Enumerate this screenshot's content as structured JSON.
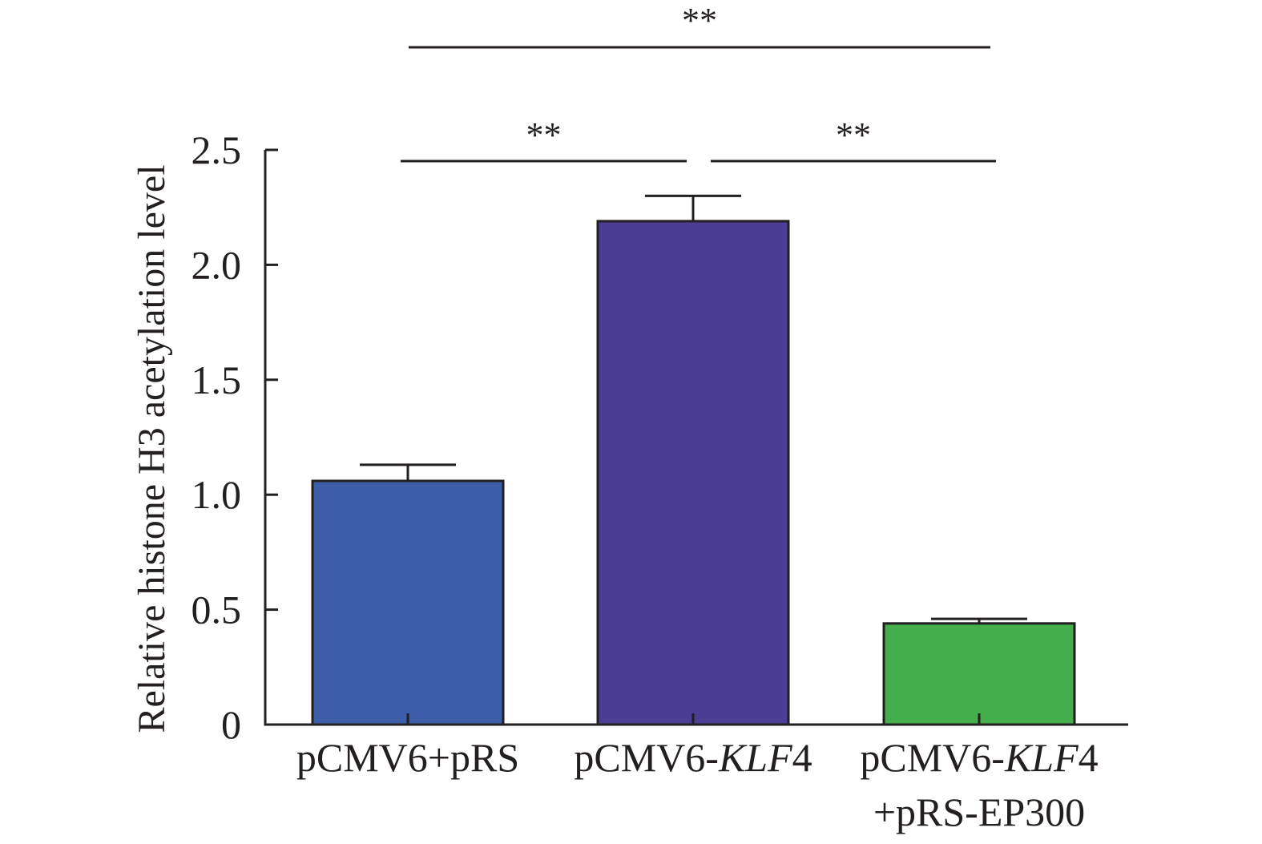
{
  "chart_data": {
    "type": "bar",
    "title": "",
    "xlabel": "",
    "ylabel": "Relative histone H3 acetylation level",
    "ylim": [
      0,
      2.5
    ],
    "yticks": [
      "0",
      "0.5",
      "1.0",
      "1.5",
      "2.0",
      "2.5"
    ],
    "ytick_values": [
      0,
      0.5,
      1.0,
      1.5,
      2.0,
      2.5
    ],
    "categories": [
      {
        "lines": [
          [
            {
              "text": "pCMV6+pRS",
              "italic": false
            }
          ]
        ]
      },
      {
        "lines": [
          [
            {
              "text": "pCMV6-",
              "italic": false
            },
            {
              "text": "KLF",
              "italic": true
            },
            {
              "text": "4",
              "italic": false
            }
          ]
        ]
      },
      {
        "lines": [
          [
            {
              "text": "pCMV6-",
              "italic": false
            },
            {
              "text": "KLF",
              "italic": true
            },
            {
              "text": "4",
              "italic": false
            }
          ],
          [
            {
              "text": "+pRS-EP300",
              "italic": false
            }
          ]
        ]
      }
    ],
    "values": [
      1.06,
      2.19,
      0.44
    ],
    "errors": [
      0.07,
      0.11,
      0.02
    ],
    "colors": [
      "#3c5ea8",
      "#4a3d93",
      "#43ae4b"
    ],
    "grid": false,
    "legend": "none",
    "significance": [
      {
        "from": 0,
        "to": 2,
        "label": "**"
      },
      {
        "from": 0,
        "to": 1,
        "label": "**"
      },
      {
        "from": 1,
        "to": 2,
        "label": "**"
      }
    ]
  }
}
